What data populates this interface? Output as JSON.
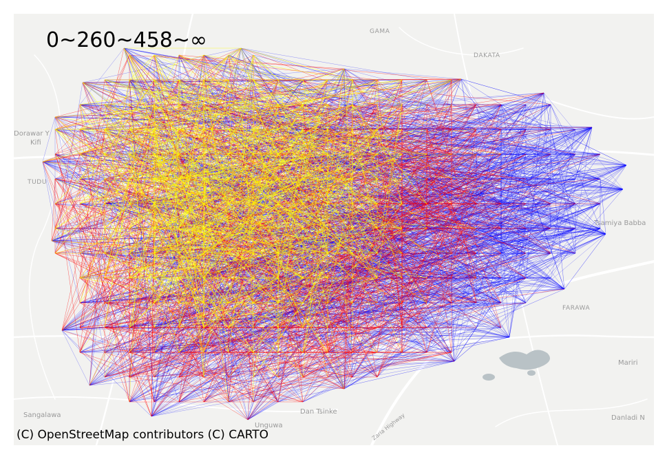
{
  "map": {
    "legend_label": "0~260~458~∞",
    "attribution": "(C) OpenStreetMap contributors (C) CARTO",
    "basemap_style": "light-gray",
    "place_labels": [
      "GAMA",
      "DAKATA",
      "Dorawar Y",
      "Kifi",
      "TUDU",
      "Tsamiya Babba",
      "FARAWA",
      "Mariri",
      "Sangalawa",
      "Dan Tsinke",
      "Unguwa",
      "Danladi N",
      "Zaria Highway"
    ],
    "colors": {
      "class_low": "#ffff00",
      "class_mid": "#ff0000",
      "class_high": "#0000ff",
      "background": "#f2f2f0",
      "roads": "#ffffff",
      "water": "#b9c2c6"
    }
  }
}
